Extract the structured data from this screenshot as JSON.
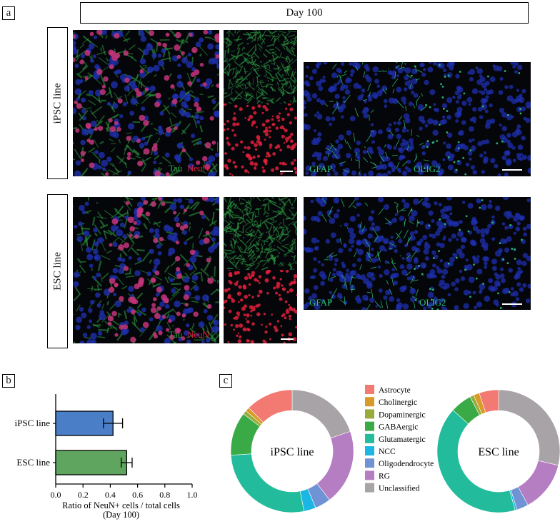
{
  "panel_a": {
    "letter": "a",
    "timepoint": "Day 100",
    "rows": [
      {
        "label": "iPSC line",
        "stains_left": [
          "Tau",
          "NeuN"
        ],
        "stains_right": [
          "GFAP",
          "OLIG2"
        ]
      },
      {
        "label": "ESC line",
        "stains_left": [
          "Tau",
          "NeuN"
        ],
        "stains_right": [
          "GFAP",
          "OLIG2"
        ]
      }
    ],
    "colors": {
      "tau": "#2ea043",
      "neun": "#e0203a",
      "nuclei": "#1e2fae",
      "gfap": "#2ec27a"
    }
  },
  "panel_b": {
    "letter": "b"
  },
  "panel_c": {
    "letter": "c"
  },
  "chart_data": [
    {
      "type": "bar",
      "orientation": "horizontal",
      "categories": [
        "iPSC line",
        "ESC line"
      ],
      "values": [
        0.42,
        0.52
      ],
      "errors": [
        0.07,
        0.04
      ],
      "colors": [
        "#4a7fc8",
        "#5fa45f"
      ],
      "xlabel": "Ratio of NeuN+ cells / total cells\n(Day 100)",
      "xlim": [
        0.0,
        1.0
      ],
      "xticks": [
        "0.0",
        "0.2",
        "0.4",
        "0.6",
        "0.8",
        "1.0"
      ]
    },
    {
      "type": "pie",
      "variant": "donut",
      "center_label": "iPSC line",
      "labels": [
        "Astrocyte",
        "Cholinergic",
        "Dopaminergic",
        "GABAergic",
        "Glutamatergic",
        "NCC",
        "Oligodendrocyte",
        "RG",
        "Unclassified"
      ],
      "values": [
        12,
        1,
        1,
        11,
        26,
        3,
        4,
        19,
        19
      ]
    },
    {
      "type": "pie",
      "variant": "donut",
      "center_label": "ESC line",
      "labels": [
        "Astrocyte",
        "Cholinergic",
        "Dopaminergic",
        "GABAergic",
        "Glutamatergic",
        "NCC",
        "Oligodendrocyte",
        "RG",
        "Unclassified"
      ],
      "values": [
        5,
        1.5,
        1,
        5.5,
        40,
        0.5,
        3,
        13,
        28
      ]
    }
  ],
  "legend": {
    "items": [
      {
        "label": "Astrocyte",
        "color": "#f27a72"
      },
      {
        "label": "Cholinergic",
        "color": "#d89a28"
      },
      {
        "label": "Dopaminergic",
        "color": "#9bab3a"
      },
      {
        "label": "GABAergic",
        "color": "#3aaa47"
      },
      {
        "label": "Glutamatergic",
        "color": "#22bc9c"
      },
      {
        "label": "NCC",
        "color": "#1cb6e4"
      },
      {
        "label": "Oligodendrocyte",
        "color": "#6f93d4"
      },
      {
        "label": "RG",
        "color": "#b57ec2"
      },
      {
        "label": "Unclassified",
        "color": "#a8a3a6"
      }
    ]
  }
}
